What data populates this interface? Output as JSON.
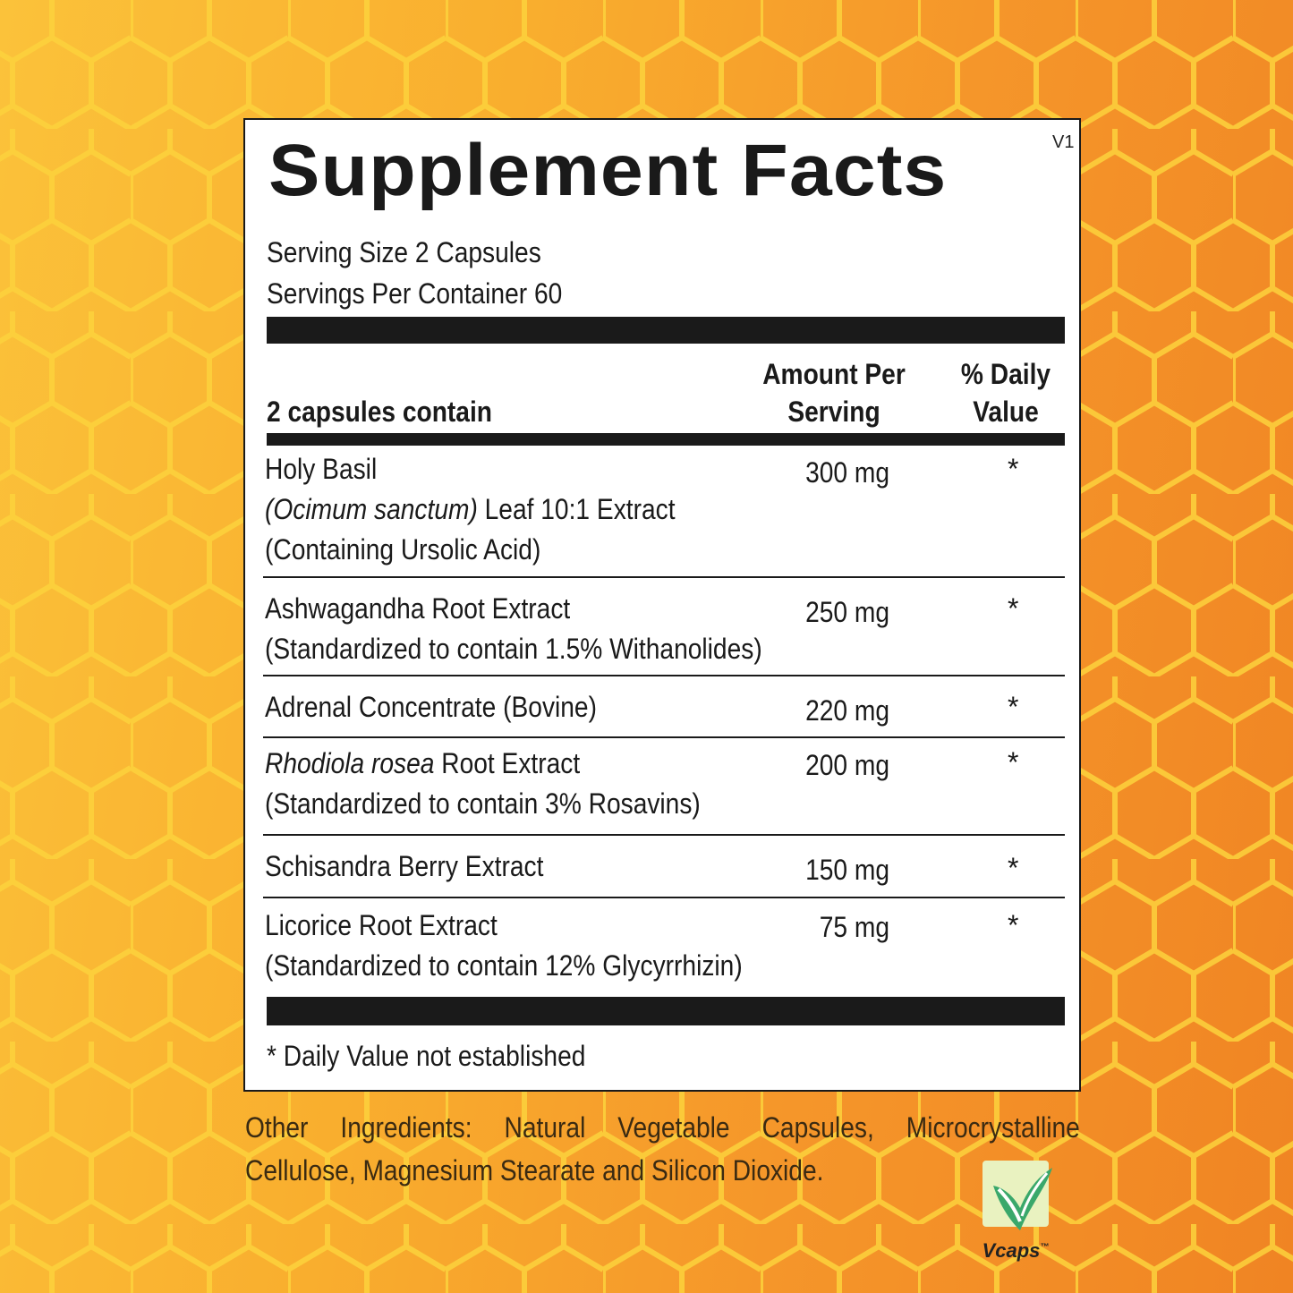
{
  "label": {
    "version": "V1",
    "title": "Supplement Facts",
    "serving_size": "Serving Size 2 Capsules",
    "servings_per_container": "Servings Per Container 60",
    "header_left": "2 capsules contain",
    "header_amount_line1": "Amount Per",
    "header_amount_line2": "Serving",
    "header_dv_line1": "% Daily",
    "header_dv_line2": "Value",
    "ingredients": [
      {
        "line1": "Holy Basil",
        "line2_italic": "(Ocimum sanctum)",
        "line2_rest": " Leaf 10:1 Extract",
        "line3": "(Containing Ursolic Acid)",
        "amount": "300 mg",
        "dv": "*"
      },
      {
        "line1": "Ashwagandha Root Extract",
        "line2": "(Standardized to contain 1.5% Withanolides)",
        "amount": "250 mg",
        "dv": "*"
      },
      {
        "line1": "Adrenal Concentrate (Bovine)",
        "amount": "220 mg",
        "dv": "*"
      },
      {
        "line1_italic": "Rhodiola rosea",
        "line1_rest": " Root Extract",
        "line2": "(Standardized to contain 3% Rosavins)",
        "amount": "200 mg",
        "dv": "*"
      },
      {
        "line1": "Schisandra Berry Extract",
        "amount": "150 mg",
        "dv": "*"
      },
      {
        "line1": "Licorice Root Extract",
        "line2": "(Standardized to contain 12% Glycyrrhizin)",
        "amount": "75 mg",
        "dv": "*"
      }
    ],
    "footnote": "* Daily Value not established"
  },
  "other_ingredients_line1": "Other Ingredients: Natural Vegetable Capsules, Microcrystalline",
  "other_ingredients_line2": "Cellulose, Magnesium Stearate and Silicon Dioxide.",
  "logo": {
    "text": "Vcaps",
    "tm": "™",
    "icon": "vcaps-leaf-icon"
  },
  "colors": {
    "background_start": "#fbc23a",
    "background_end": "#f08423",
    "honeycomb_lines": "#fcd23c",
    "ink": "#1a1a1a",
    "logo_green": "#3aa86b"
  }
}
